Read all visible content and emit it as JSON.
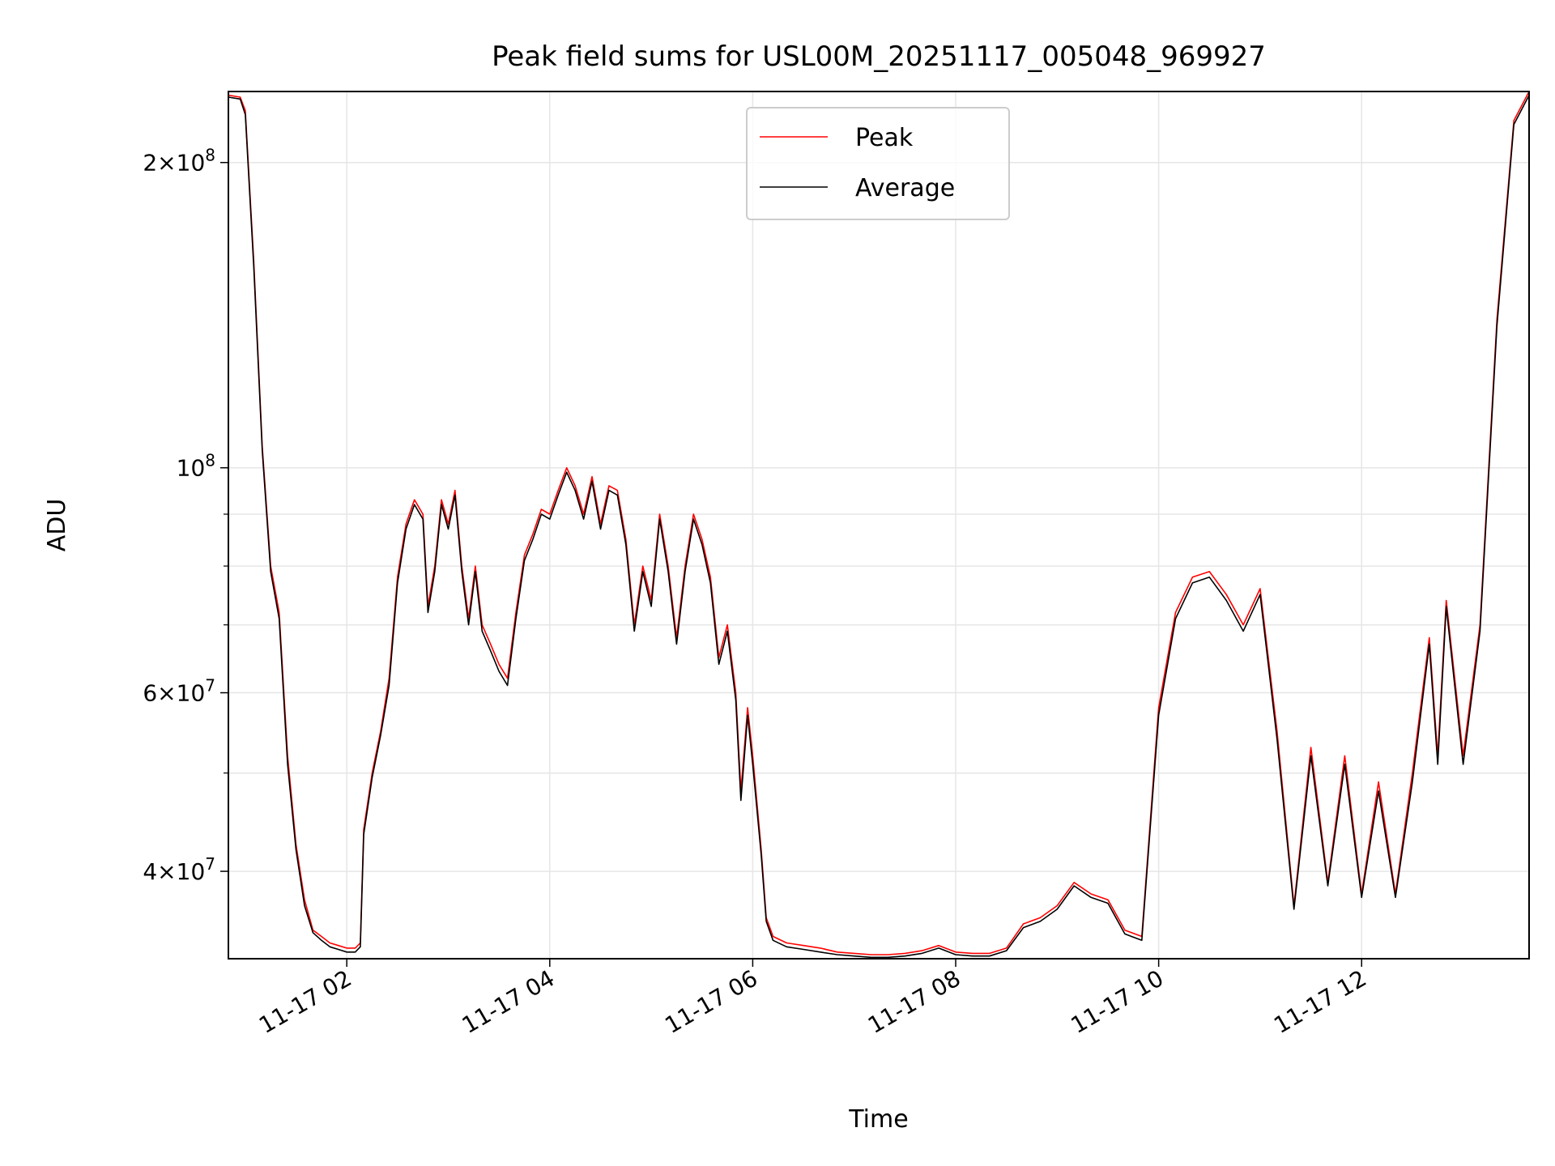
{
  "chart_data": {
    "type": "line",
    "title": "Peak field sums for USL00M_20251117_005048_969927",
    "xlabel": "Time",
    "ylabel": "ADU",
    "y_scale": "log",
    "grid": true,
    "legend_position": "upper center",
    "xlim": [
      "2025-11-17 00:50",
      "2025-11-17 13:39"
    ],
    "ylim": [
      32800000,
      235000000
    ],
    "x_ticks": [
      {
        "value": "2025-11-17 02:00",
        "label": "11-17 02"
      },
      {
        "value": "2025-11-17 04:00",
        "label": "11-17 04"
      },
      {
        "value": "2025-11-17 06:00",
        "label": "11-17 06"
      },
      {
        "value": "2025-11-17 08:00",
        "label": "11-17 08"
      },
      {
        "value": "2025-11-17 10:00",
        "label": "11-17 10"
      },
      {
        "value": "2025-11-17 12:00",
        "label": "11-17 12"
      }
    ],
    "y_ticks": [
      {
        "value": 40000000,
        "base": "4",
        "exp": "7"
      },
      {
        "value": 60000000,
        "base": "6",
        "exp": "7"
      },
      {
        "value": 100000000,
        "base": "",
        "exp": "8"
      },
      {
        "value": 200000000,
        "base": "2",
        "exp": "8"
      }
    ],
    "y_minor_ticks": [
      50000000,
      70000000,
      80000000,
      90000000
    ],
    "series": [
      {
        "name": "Peak",
        "color": "#ff0000",
        "points": [
          [
            "2025-11-17 00:50",
            233000000
          ],
          [
            "2025-11-17 00:57",
            232000000
          ],
          [
            "2025-11-17 01:00",
            225000000
          ],
          [
            "2025-11-17 01:05",
            160000000
          ],
          [
            "2025-11-17 01:10",
            105000000
          ],
          [
            "2025-11-17 01:15",
            80000000
          ],
          [
            "2025-11-17 01:20",
            72000000
          ],
          [
            "2025-11-17 01:25",
            52000000
          ],
          [
            "2025-11-17 01:30",
            42500000
          ],
          [
            "2025-11-17 01:35",
            37500000
          ],
          [
            "2025-11-17 01:40",
            35000000
          ],
          [
            "2025-11-17 01:45",
            34500000
          ],
          [
            "2025-11-17 01:50",
            34000000
          ],
          [
            "2025-11-17 01:55",
            33800000
          ],
          [
            "2025-11-17 02:00",
            33600000
          ],
          [
            "2025-11-17 02:05",
            33600000
          ],
          [
            "2025-11-17 02:08",
            34000000
          ],
          [
            "2025-11-17 02:10",
            44000000
          ],
          [
            "2025-11-17 02:15",
            50000000
          ],
          [
            "2025-11-17 02:20",
            55000000
          ],
          [
            "2025-11-17 02:25",
            62000000
          ],
          [
            "2025-11-17 02:30",
            78000000
          ],
          [
            "2025-11-17 02:35",
            88000000
          ],
          [
            "2025-11-17 02:40",
            93000000
          ],
          [
            "2025-11-17 02:45",
            90000000
          ],
          [
            "2025-11-17 02:48",
            73000000
          ],
          [
            "2025-11-17 02:52",
            80000000
          ],
          [
            "2025-11-17 02:56",
            93000000
          ],
          [
            "2025-11-17 03:00",
            88000000
          ],
          [
            "2025-11-17 03:04",
            95000000
          ],
          [
            "2025-11-17 03:08",
            80000000
          ],
          [
            "2025-11-17 03:12",
            71000000
          ],
          [
            "2025-11-17 03:16",
            80000000
          ],
          [
            "2025-11-17 03:20",
            70000000
          ],
          [
            "2025-11-17 03:25",
            67000000
          ],
          [
            "2025-11-17 03:30",
            64000000
          ],
          [
            "2025-11-17 03:35",
            62000000
          ],
          [
            "2025-11-17 03:40",
            72000000
          ],
          [
            "2025-11-17 03:45",
            82000000
          ],
          [
            "2025-11-17 03:50",
            86000000
          ],
          [
            "2025-11-17 03:55",
            91000000
          ],
          [
            "2025-11-17 04:00",
            90000000
          ],
          [
            "2025-11-17 04:05",
            95000000
          ],
          [
            "2025-11-17 04:10",
            100000000
          ],
          [
            "2025-11-17 04:15",
            96000000
          ],
          [
            "2025-11-17 04:20",
            90000000
          ],
          [
            "2025-11-17 04:25",
            98000000
          ],
          [
            "2025-11-17 04:30",
            88000000
          ],
          [
            "2025-11-17 04:35",
            96000000
          ],
          [
            "2025-11-17 04:40",
            95000000
          ],
          [
            "2025-11-17 04:45",
            85000000
          ],
          [
            "2025-11-17 04:50",
            70000000
          ],
          [
            "2025-11-17 04:55",
            80000000
          ],
          [
            "2025-11-17 05:00",
            74000000
          ],
          [
            "2025-11-17 05:05",
            90000000
          ],
          [
            "2025-11-17 05:10",
            80000000
          ],
          [
            "2025-11-17 05:15",
            68000000
          ],
          [
            "2025-11-17 05:20",
            80000000
          ],
          [
            "2025-11-17 05:25",
            90000000
          ],
          [
            "2025-11-17 05:30",
            85000000
          ],
          [
            "2025-11-17 05:35",
            78000000
          ],
          [
            "2025-11-17 05:40",
            65000000
          ],
          [
            "2025-11-17 05:45",
            70000000
          ],
          [
            "2025-11-17 05:50",
            60000000
          ],
          [
            "2025-11-17 05:53",
            48000000
          ],
          [
            "2025-11-17 05:57",
            58000000
          ],
          [
            "2025-11-17 06:00",
            52000000
          ],
          [
            "2025-11-17 06:05",
            42000000
          ],
          [
            "2025-11-17 06:08",
            36000000
          ],
          [
            "2025-11-17 06:12",
            34500000
          ],
          [
            "2025-11-17 06:20",
            34000000
          ],
          [
            "2025-11-17 06:30",
            33800000
          ],
          [
            "2025-11-17 06:40",
            33600000
          ],
          [
            "2025-11-17 06:50",
            33300000
          ],
          [
            "2025-11-17 07:00",
            33200000
          ],
          [
            "2025-11-17 07:10",
            33100000
          ],
          [
            "2025-11-17 07:20",
            33100000
          ],
          [
            "2025-11-17 07:30",
            33200000
          ],
          [
            "2025-11-17 07:40",
            33400000
          ],
          [
            "2025-11-17 07:50",
            33800000
          ],
          [
            "2025-11-17 08:00",
            33300000
          ],
          [
            "2025-11-17 08:10",
            33200000
          ],
          [
            "2025-11-17 08:20",
            33200000
          ],
          [
            "2025-11-17 08:30",
            33600000
          ],
          [
            "2025-11-17 08:40",
            35500000
          ],
          [
            "2025-11-17 08:50",
            36000000
          ],
          [
            "2025-11-17 09:00",
            37000000
          ],
          [
            "2025-11-17 09:10",
            39000000
          ],
          [
            "2025-11-17 09:20",
            38000000
          ],
          [
            "2025-11-17 09:30",
            37500000
          ],
          [
            "2025-11-17 09:40",
            35000000
          ],
          [
            "2025-11-17 09:50",
            34500000
          ],
          [
            "2025-11-17 10:00",
            58000000
          ],
          [
            "2025-11-17 10:10",
            72000000
          ],
          [
            "2025-11-17 10:20",
            78000000
          ],
          [
            "2025-11-17 10:30",
            79000000
          ],
          [
            "2025-11-17 10:40",
            75000000
          ],
          [
            "2025-11-17 10:50",
            70000000
          ],
          [
            "2025-11-17 11:00",
            76000000
          ],
          [
            "2025-11-17 11:10",
            55000000
          ],
          [
            "2025-11-17 11:20",
            37000000
          ],
          [
            "2025-11-17 11:30",
            53000000
          ],
          [
            "2025-11-17 11:40",
            39000000
          ],
          [
            "2025-11-17 11:50",
            52000000
          ],
          [
            "2025-11-17 12:00",
            38000000
          ],
          [
            "2025-11-17 12:10",
            49000000
          ],
          [
            "2025-11-17 12:20",
            38000000
          ],
          [
            "2025-11-17 12:30",
            50000000
          ],
          [
            "2025-11-17 12:40",
            68000000
          ],
          [
            "2025-11-17 12:45",
            52000000
          ],
          [
            "2025-11-17 12:50",
            74000000
          ],
          [
            "2025-11-17 13:00",
            52000000
          ],
          [
            "2025-11-17 13:10",
            70000000
          ],
          [
            "2025-11-17 13:20",
            140000000
          ],
          [
            "2025-11-17 13:30",
            220000000
          ],
          [
            "2025-11-17 13:39",
            235000000
          ]
        ]
      },
      {
        "name": "Average",
        "color": "#000000",
        "points": [
          [
            "2025-11-17 00:50",
            232000000
          ],
          [
            "2025-11-17 00:57",
            231000000
          ],
          [
            "2025-11-17 01:00",
            223000000
          ],
          [
            "2025-11-17 01:05",
            158000000
          ],
          [
            "2025-11-17 01:10",
            104000000
          ],
          [
            "2025-11-17 01:15",
            79000000
          ],
          [
            "2025-11-17 01:20",
            71000000
          ],
          [
            "2025-11-17 01:25",
            51000000
          ],
          [
            "2025-11-17 01:30",
            42000000
          ],
          [
            "2025-11-17 01:35",
            37000000
          ],
          [
            "2025-11-17 01:40",
            34800000
          ],
          [
            "2025-11-17 01:45",
            34200000
          ],
          [
            "2025-11-17 01:50",
            33700000
          ],
          [
            "2025-11-17 01:55",
            33500000
          ],
          [
            "2025-11-17 02:00",
            33300000
          ],
          [
            "2025-11-17 02:05",
            33300000
          ],
          [
            "2025-11-17 02:08",
            33700000
          ],
          [
            "2025-11-17 02:10",
            43500000
          ],
          [
            "2025-11-17 02:15",
            49500000
          ],
          [
            "2025-11-17 02:20",
            54500000
          ],
          [
            "2025-11-17 02:25",
            61000000
          ],
          [
            "2025-11-17 02:30",
            77000000
          ],
          [
            "2025-11-17 02:35",
            87000000
          ],
          [
            "2025-11-17 02:40",
            92000000
          ],
          [
            "2025-11-17 02:45",
            89000000
          ],
          [
            "2025-11-17 02:48",
            72000000
          ],
          [
            "2025-11-17 02:52",
            79000000
          ],
          [
            "2025-11-17 02:56",
            92000000
          ],
          [
            "2025-11-17 03:00",
            87000000
          ],
          [
            "2025-11-17 03:04",
            94000000
          ],
          [
            "2025-11-17 03:08",
            79000000
          ],
          [
            "2025-11-17 03:12",
            70000000
          ],
          [
            "2025-11-17 03:16",
            79000000
          ],
          [
            "2025-11-17 03:20",
            69000000
          ],
          [
            "2025-11-17 03:25",
            66000000
          ],
          [
            "2025-11-17 03:30",
            63000000
          ],
          [
            "2025-11-17 03:35",
            61000000
          ],
          [
            "2025-11-17 03:40",
            71000000
          ],
          [
            "2025-11-17 03:45",
            81000000
          ],
          [
            "2025-11-17 03:50",
            85000000
          ],
          [
            "2025-11-17 03:55",
            90000000
          ],
          [
            "2025-11-17 04:00",
            89000000
          ],
          [
            "2025-11-17 04:05",
            94000000
          ],
          [
            "2025-11-17 04:10",
            99000000
          ],
          [
            "2025-11-17 04:15",
            95000000
          ],
          [
            "2025-11-17 04:20",
            89000000
          ],
          [
            "2025-11-17 04:25",
            97000000
          ],
          [
            "2025-11-17 04:30",
            87000000
          ],
          [
            "2025-11-17 04:35",
            95000000
          ],
          [
            "2025-11-17 04:40",
            94000000
          ],
          [
            "2025-11-17 04:45",
            84000000
          ],
          [
            "2025-11-17 04:50",
            69000000
          ],
          [
            "2025-11-17 04:55",
            79000000
          ],
          [
            "2025-11-17 05:00",
            73000000
          ],
          [
            "2025-11-17 05:05",
            89000000
          ],
          [
            "2025-11-17 05:10",
            79000000
          ],
          [
            "2025-11-17 05:15",
            67000000
          ],
          [
            "2025-11-17 05:20",
            79000000
          ],
          [
            "2025-11-17 05:25",
            89000000
          ],
          [
            "2025-11-17 05:30",
            84000000
          ],
          [
            "2025-11-17 05:35",
            77000000
          ],
          [
            "2025-11-17 05:40",
            64000000
          ],
          [
            "2025-11-17 05:45",
            69000000
          ],
          [
            "2025-11-17 05:50",
            59000000
          ],
          [
            "2025-11-17 05:53",
            47000000
          ],
          [
            "2025-11-17 05:57",
            57000000
          ],
          [
            "2025-11-17 06:00",
            51000000
          ],
          [
            "2025-11-17 06:05",
            41500000
          ],
          [
            "2025-11-17 06:08",
            35700000
          ],
          [
            "2025-11-17 06:12",
            34200000
          ],
          [
            "2025-11-17 06:20",
            33700000
          ],
          [
            "2025-11-17 06:30",
            33500000
          ],
          [
            "2025-11-17 06:40",
            33300000
          ],
          [
            "2025-11-17 06:50",
            33100000
          ],
          [
            "2025-11-17 07:00",
            33000000
          ],
          [
            "2025-11-17 07:10",
            32900000
          ],
          [
            "2025-11-17 07:20",
            32900000
          ],
          [
            "2025-11-17 07:30",
            33000000
          ],
          [
            "2025-11-17 07:40",
            33200000
          ],
          [
            "2025-11-17 07:50",
            33600000
          ],
          [
            "2025-11-17 08:00",
            33100000
          ],
          [
            "2025-11-17 08:10",
            33000000
          ],
          [
            "2025-11-17 08:20",
            33000000
          ],
          [
            "2025-11-17 08:30",
            33400000
          ],
          [
            "2025-11-17 08:40",
            35200000
          ],
          [
            "2025-11-17 08:50",
            35700000
          ],
          [
            "2025-11-17 09:00",
            36700000
          ],
          [
            "2025-11-17 09:10",
            38700000
          ],
          [
            "2025-11-17 09:20",
            37700000
          ],
          [
            "2025-11-17 09:30",
            37200000
          ],
          [
            "2025-11-17 09:40",
            34700000
          ],
          [
            "2025-11-17 09:50",
            34200000
          ],
          [
            "2025-11-17 10:00",
            57000000
          ],
          [
            "2025-11-17 10:10",
            71000000
          ],
          [
            "2025-11-17 10:20",
            77000000
          ],
          [
            "2025-11-17 10:30",
            78000000
          ],
          [
            "2025-11-17 10:40",
            74000000
          ],
          [
            "2025-11-17 10:50",
            69000000
          ],
          [
            "2025-11-17 11:00",
            75000000
          ],
          [
            "2025-11-17 11:10",
            54000000
          ],
          [
            "2025-11-17 11:20",
            36700000
          ],
          [
            "2025-11-17 11:30",
            52000000
          ],
          [
            "2025-11-17 11:40",
            38700000
          ],
          [
            "2025-11-17 11:50",
            51000000
          ],
          [
            "2025-11-17 12:00",
            37700000
          ],
          [
            "2025-11-17 12:10",
            48000000
          ],
          [
            "2025-11-17 12:20",
            37700000
          ],
          [
            "2025-11-17 12:30",
            49000000
          ],
          [
            "2025-11-17 12:40",
            67000000
          ],
          [
            "2025-11-17 12:45",
            51000000
          ],
          [
            "2025-11-17 12:50",
            73000000
          ],
          [
            "2025-11-17 13:00",
            51000000
          ],
          [
            "2025-11-17 13:10",
            69000000
          ],
          [
            "2025-11-17 13:20",
            138000000
          ],
          [
            "2025-11-17 13:30",
            218000000
          ],
          [
            "2025-11-17 13:39",
            233000000
          ]
        ]
      }
    ]
  }
}
